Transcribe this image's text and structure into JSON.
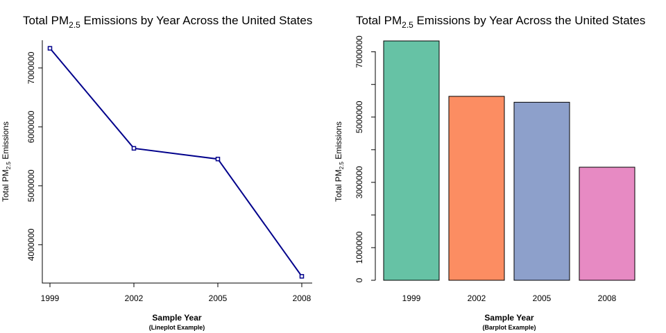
{
  "chart_data": [
    {
      "type": "line",
      "title_prefix": "Total PM",
      "title_sub": "2.5",
      "title_suffix": " Emissions by Year Across the United States",
      "xlabel": "Sample Year",
      "xsublabel": "(Lineplot Example)",
      "ylabel_prefix": "Total PM",
      "ylabel_sub": "2.5",
      "ylabel_suffix": " Emissions",
      "x": [
        1999,
        2002,
        2005,
        2008
      ],
      "y": [
        7332967,
        5635780,
        5454703,
        3464206
      ],
      "xticks": [
        "1999",
        "2002",
        "2005",
        "2008"
      ],
      "yticks": [
        4000000,
        5000000,
        6000000,
        7000000
      ],
      "ytick_labels": [
        "4000000",
        "5000000",
        "6000000",
        "7000000"
      ],
      "ylim": [
        3350000,
        7470000
      ],
      "line_color": "#00008b",
      "grid": false
    },
    {
      "type": "bar",
      "title_prefix": "Total PM",
      "title_sub": "2.5",
      "title_suffix": " Emissions by Year Across the United States",
      "xlabel": "Sample Year",
      "xsublabel": "(Barplot Example)",
      "ylabel_prefix": "Total PM",
      "ylabel_sub": "2.5",
      "ylabel_suffix": " Emissions",
      "categories": [
        "1999",
        "2002",
        "2005",
        "2008"
      ],
      "values": [
        7332967,
        5635780,
        5454703,
        3464206
      ],
      "colors": [
        "#66c2a5",
        "#fc8d62",
        "#8da0cb",
        "#e78ac3"
      ],
      "yticks": [
        0,
        1000000,
        2000000,
        3000000,
        4000000,
        5000000,
        6000000,
        7000000
      ],
      "ytick_labels": [
        "0",
        "1000000",
        "",
        "3000000",
        "",
        "5000000",
        "",
        "7000000"
      ],
      "ylim": [
        0,
        7333000
      ],
      "grid": false
    }
  ]
}
